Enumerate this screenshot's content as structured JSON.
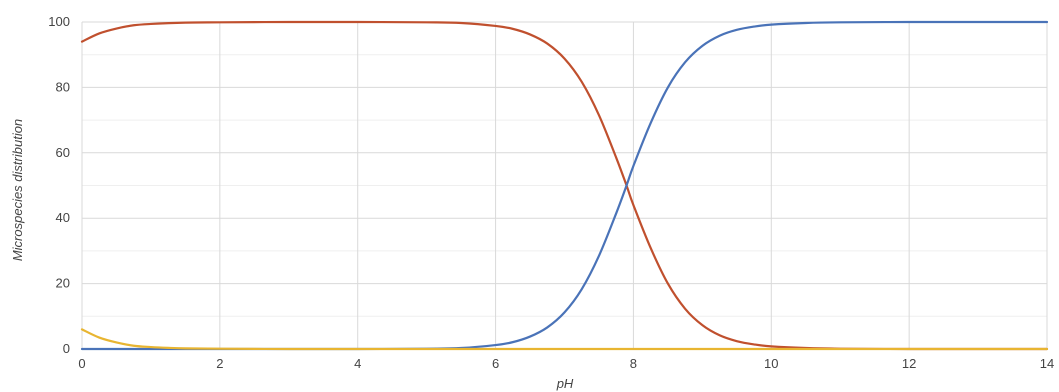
{
  "chart_data": {
    "type": "line",
    "title": "",
    "xlabel": "pH",
    "ylabel": "Microspecies distribution",
    "xlim": [
      0,
      14
    ],
    "ylim": [
      0,
      100
    ],
    "x_ticks": [
      "0",
      "2",
      "4",
      "6",
      "8",
      "10",
      "12",
      "14"
    ],
    "y_ticks": [
      "0",
      "20",
      "40",
      "60",
      "80",
      "100"
    ],
    "grid": true,
    "legend": "none",
    "series": [
      {
        "color": "#c0502e",
        "x": [
          0,
          0.25,
          0.5,
          0.75,
          1,
          1.5,
          2,
          3,
          4,
          5,
          5.5,
          6,
          6.25,
          6.5,
          6.75,
          7,
          7.25,
          7.5,
          7.75,
          7.9,
          8,
          8.25,
          8.5,
          8.75,
          9,
          9.25,
          9.5,
          9.75,
          10,
          10.5,
          11,
          12,
          13,
          14
        ],
        "y": [
          94,
          96.5,
          98,
          99,
          99.4,
          99.8,
          99.9,
          100,
          100,
          99.9,
          99.7,
          98.8,
          97.9,
          96.2,
          93.4,
          88.8,
          81.7,
          71.5,
          58.5,
          50,
          44,
          30.9,
          20,
          12.3,
          7.3,
          4.2,
          2.4,
          1.4,
          0.8,
          0.3,
          0.1,
          0,
          0,
          0
        ]
      },
      {
        "color": "#4a73b8",
        "x": [
          0,
          1,
          2,
          3,
          4,
          5,
          5.5,
          6,
          6.25,
          6.5,
          6.75,
          7,
          7.25,
          7.5,
          7.75,
          7.9,
          8,
          8.25,
          8.5,
          8.75,
          9,
          9.25,
          9.5,
          9.75,
          10,
          10.5,
          11,
          12,
          13,
          14
        ],
        "y": [
          0,
          0,
          0,
          0,
          0,
          0.1,
          0.3,
          1.2,
          2.1,
          3.8,
          6.6,
          11.2,
          18.3,
          28.5,
          41.5,
          50,
          56,
          69.1,
          80,
          87.7,
          92.7,
          95.8,
          97.6,
          98.6,
          99.2,
          99.7,
          99.9,
          100,
          100,
          100
        ]
      },
      {
        "color": "#e8b531",
        "x": [
          0,
          0.25,
          0.5,
          0.75,
          1,
          1.25,
          1.5,
          2,
          3,
          4,
          5,
          6,
          7,
          8,
          9,
          10,
          11,
          12,
          13,
          14
        ],
        "y": [
          6,
          3.5,
          2,
          1,
          0.6,
          0.35,
          0.2,
          0.1,
          0,
          0,
          0,
          0,
          0,
          0,
          0,
          0,
          0,
          0,
          0,
          0
        ]
      }
    ]
  }
}
